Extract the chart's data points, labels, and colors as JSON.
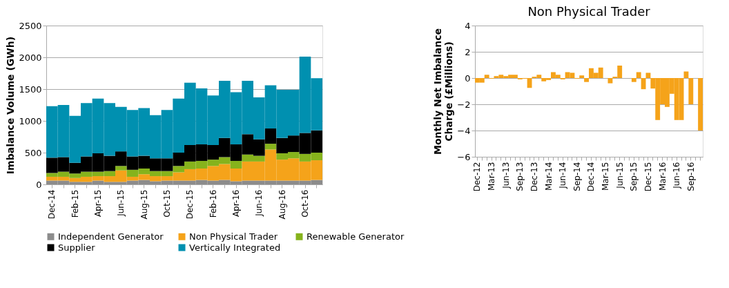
{
  "chart_data": [
    {
      "type": "bar",
      "stacked": true,
      "ylabel": "Imbalance Volume (GWh)",
      "ylim": [
        0,
        2500
      ],
      "yticks": [
        0,
        500,
        1000,
        1500,
        2000,
        2500
      ],
      "grid": "y",
      "legend": "bottom",
      "categories": [
        "Dec-14",
        null,
        "Feb-15",
        null,
        "Apr-15",
        null,
        "Jun-15",
        null,
        "Aug-15",
        null,
        "Oct-15",
        null,
        "Dec-15",
        null,
        "Feb-16",
        null,
        "Apr-16",
        null,
        "Jun-16",
        null,
        "Aug-16",
        null,
        "Oct-16",
        null
      ],
      "series": [
        {
          "name": "Independent Generator",
          "color": "#8c8c8c",
          "values": [
            60,
            60,
            40,
            40,
            60,
            40,
            40,
            60,
            70,
            50,
            60,
            60,
            60,
            70,
            60,
            70,
            50,
            60,
            60,
            60,
            60,
            60,
            60,
            70
          ]
        },
        {
          "name": "Non Physical Trader",
          "color": "#f5a31a",
          "values": [
            60,
            60,
            60,
            80,
            70,
            90,
            180,
            60,
            90,
            80,
            70,
            130,
            180,
            180,
            230,
            250,
            200,
            300,
            300,
            490,
            330,
            350,
            300,
            310
          ]
        },
        {
          "name": "Renewable Generator",
          "color": "#86b31c",
          "values": [
            60,
            80,
            70,
            80,
            70,
            80,
            70,
            110,
            90,
            80,
            80,
            100,
            120,
            120,
            100,
            110,
            120,
            110,
            90,
            90,
            100,
            100,
            120,
            120
          ]
        },
        {
          "name": "Supplier",
          "color": "#000000",
          "values": [
            240,
            230,
            170,
            240,
            290,
            240,
            230,
            210,
            200,
            200,
            200,
            210,
            260,
            260,
            230,
            300,
            260,
            320,
            260,
            240,
            240,
            260,
            330,
            350
          ]
        },
        {
          "name": "Vertically Integrated",
          "color": "#0090b0",
          "values": [
            810,
            820,
            740,
            840,
            860,
            830,
            700,
            730,
            750,
            680,
            760,
            850,
            980,
            880,
            780,
            900,
            820,
            840,
            660,
            680,
            760,
            720,
            1200,
            820
          ]
        }
      ]
    },
    {
      "type": "bar",
      "title": "Non Physical Trader",
      "ylabel": "Monthly Net Imbalance Charge (£Millions)",
      "ylim": [
        -6,
        4
      ],
      "yticks": [
        -6,
        -4,
        -2,
        0,
        2,
        4
      ],
      "grid": "y",
      "color": "#f5a31a",
      "categories": [
        "Dec-12",
        null,
        null,
        "Mar-13",
        null,
        null,
        "Jun-13",
        null,
        null,
        "Sep-13",
        null,
        null,
        "Dec-13",
        null,
        null,
        "Mar-14",
        null,
        null,
        "Jun-14",
        null,
        null,
        "Sep-14",
        null,
        null,
        "Dec-14",
        null,
        null,
        "Mar-15",
        null,
        null,
        "Jun-15",
        null,
        null,
        "Sep-15",
        null,
        null,
        "Dec-15",
        null,
        null,
        "Mar-16",
        null,
        null,
        "Jun-16",
        null,
        null,
        "Sep-16",
        null,
        null
      ],
      "values": [
        -0.35,
        -0.35,
        0.25,
        -0.05,
        0.15,
        0.25,
        0.15,
        0.25,
        0.25,
        -0.1,
        -0.05,
        -0.75,
        0.1,
        0.25,
        -0.25,
        -0.15,
        0.45,
        0.25,
        -0.1,
        0.45,
        0.4,
        -0.05,
        0.2,
        -0.3,
        0.75,
        0.4,
        0.8,
        0,
        -0.4,
        0.1,
        0.95,
        0,
        0,
        -0.3,
        0.45,
        -0.85,
        0.4,
        -0.8,
        -3.2,
        -2.0,
        -2.2,
        -1.2,
        -3.2,
        -3.2,
        0.5,
        -2.0,
        0,
        -4.0
      ]
    }
  ]
}
